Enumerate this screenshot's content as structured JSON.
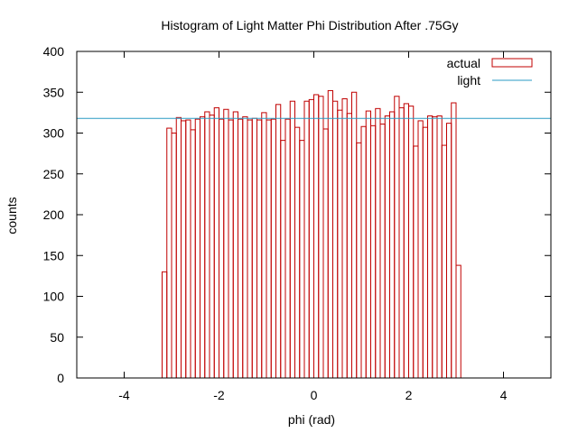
{
  "chart_data": {
    "type": "bar",
    "title": "Histogram of Light Matter Phi Distribution After .75Gy",
    "xlabel": "phi (rad)",
    "ylabel": "counts",
    "xlim": [
      -5,
      5
    ],
    "ylim": [
      0,
      400
    ],
    "x_ticks": [
      -4,
      -2,
      0,
      2,
      4
    ],
    "x_tick_labels": [
      "-4",
      "-2",
      "0",
      "2",
      "4"
    ],
    "y_ticks": [
      0,
      50,
      100,
      150,
      200,
      250,
      300,
      350,
      400
    ],
    "y_tick_labels": [
      "0",
      "50",
      "100",
      "150",
      "200",
      "250",
      "300",
      "350",
      "400"
    ],
    "grid": false,
    "legend_position": "top-right",
    "series": [
      {
        "name": "actual",
        "style": "histogram-outline",
        "color": "#c00000",
        "bin_width": 0.1,
        "bin_starts": [
          -3.2,
          -3.1,
          -3.0,
          -2.9,
          -2.8,
          -2.7,
          -2.6,
          -2.5,
          -2.4,
          -2.3,
          -2.2,
          -2.1,
          -2.0,
          -1.9,
          -1.8,
          -1.7,
          -1.6,
          -1.5,
          -1.4,
          -1.3,
          -1.2,
          -1.1,
          -1.0,
          -0.9,
          -0.8,
          -0.7,
          -0.6,
          -0.5,
          -0.4,
          -0.3,
          -0.2,
          -0.1,
          0.0,
          0.1,
          0.2,
          0.3,
          0.4,
          0.5,
          0.6,
          0.7,
          0.8,
          0.9,
          1.0,
          1.1,
          1.2,
          1.3,
          1.4,
          1.5,
          1.6,
          1.7,
          1.8,
          1.9,
          2.0,
          2.1,
          2.2,
          2.3,
          2.4,
          2.5,
          2.6,
          2.7,
          2.8,
          2.9,
          3.0,
          3.1,
          3.2
        ],
        "values": [
          130,
          306,
          300,
          319,
          315,
          316,
          304,
          317,
          320,
          326,
          322,
          331,
          317,
          329,
          316,
          326,
          317,
          320,
          316,
          318,
          316,
          325,
          316,
          317,
          335,
          291,
          317,
          339,
          307,
          291,
          339,
          341,
          347,
          345,
          305,
          352,
          339,
          328,
          342,
          324,
          350,
          288,
          308,
          327,
          309,
          330,
          311,
          321,
          326,
          345,
          331,
          336,
          333,
          284,
          315,
          307,
          321,
          320,
          321,
          285,
          312,
          337,
          138,
          0,
          0
        ]
      },
      {
        "name": "light",
        "style": "line",
        "color": "#2a9bc4",
        "y": 318
      }
    ]
  }
}
